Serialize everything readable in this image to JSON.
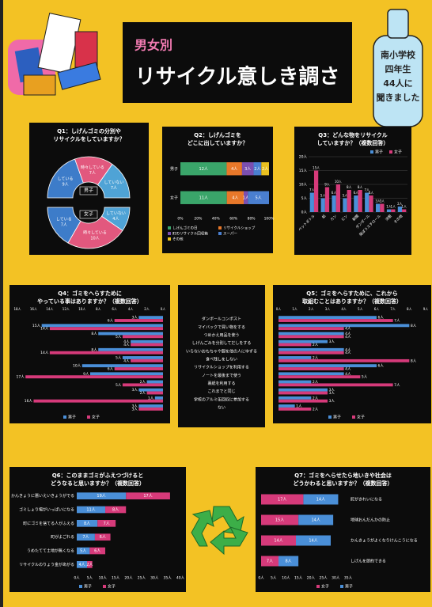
{
  "poster": {
    "title_small": "男女別",
    "title": "リサイクル意しき調さ",
    "note": [
      "南小学校",
      "四年生",
      "44人に",
      "聞きました"
    ]
  },
  "chart_data": [
    {
      "type": "donut",
      "title": [
        "Q1：しげんゴミの分別や",
        "リサイクルをしていますか？"
      ],
      "categories": [
        "している",
        "時々している",
        "していない"
      ],
      "colors": [
        "#3d7cc9",
        "#e2587e",
        "#4fa3d6"
      ],
      "series": [
        {
          "name": "男子",
          "values": [
            9,
            7,
            7
          ],
          "value_labels": [
            "9人",
            "7人",
            "7人"
          ]
        },
        {
          "name": "女子",
          "values": [
            7,
            10,
            4
          ],
          "value_labels": [
            "7人",
            "10人",
            "4人"
          ]
        }
      ]
    },
    {
      "type": "barh_stacked",
      "stacked": "percent",
      "title": [
        "Q2：しげんゴミを",
        "どこに出していますか？"
      ],
      "categories": [
        "男子",
        "女子"
      ],
      "series": [
        {
          "name": "しげんゴミの日",
          "color": "#3aa56a",
          "values": [
            12,
            11
          ],
          "value_labels": [
            "12人",
            "11人"
          ]
        },
        {
          "name": "リサイクルショップ",
          "color": "#e8782a",
          "values": [
            4,
            4
          ],
          "value_labels": [
            "4人",
            "4人"
          ]
        },
        {
          "name": "町のリサイクル回収箱",
          "color": "#7b4fb0",
          "values": [
            3,
            1
          ],
          "value_labels": [
            "3人",
            "1人"
          ]
        },
        {
          "name": "スーパー",
          "color": "#4a7fd0",
          "values": [
            2,
            5
          ],
          "value_labels": [
            "2人",
            "5人"
          ]
        },
        {
          "name": "その他",
          "color": "#e8c020",
          "values": [
            2,
            0
          ],
          "value_labels": [
            "2人",
            null
          ]
        }
      ],
      "xlim": [
        0,
        100
      ],
      "xticks": [
        {
          "value": 0,
          "label": "0%"
        },
        {
          "value": 20,
          "label": "20%"
        },
        {
          "value": 40,
          "label": "40%"
        },
        {
          "value": 60,
          "label": "60%"
        },
        {
          "value": 80,
          "label": "80%"
        },
        {
          "value": 100,
          "label": "100%"
        }
      ]
    },
    {
      "type": "bar_grouped",
      "title": [
        "Q3：どんな物をリサイクル",
        "していますか？（複数回答）"
      ],
      "categories": [
        "ペットボトル",
        "紙",
        "カン",
        "ビン",
        "新聞",
        "ダンボール",
        "発ぽうスチロール",
        "洋服",
        "その他"
      ],
      "series": [
        {
          "name": "男子",
          "color": "#4a8fd8",
          "values": [
            7,
            5,
            6,
            5,
            6,
            7,
            3,
            1,
            2
          ],
          "value_labels": [
            "7人",
            "5人",
            "6人",
            "5人",
            "6人",
            "7人",
            "3人",
            "1人",
            "2人"
          ]
        },
        {
          "name": "女子",
          "color": "#d63a7a",
          "values": [
            15,
            9,
            10,
            8,
            8,
            6,
            3,
            1,
            1
          ],
          "value_labels": [
            "15人",
            "9人",
            "10人",
            "8人",
            "8人",
            "6人",
            "3人",
            "1人",
            "1人"
          ]
        }
      ],
      "ylim": [
        0,
        20
      ],
      "yticks": [
        {
          "value": 0,
          "label": "0人"
        },
        {
          "value": 5,
          "label": "5人"
        },
        {
          "value": 10,
          "label": "10人"
        },
        {
          "value": 15,
          "label": "15人"
        },
        {
          "value": 20,
          "label": "20人"
        }
      ],
      "grid": true
    },
    {
      "type": "barh_grouped",
      "x_reversed": true,
      "title": [
        "Q4：ゴミをへらすために",
        "やっている事はありますか？（複数回答）"
      ],
      "categories": [
        "ダンボールコンポスト",
        "マイバックで買い物をする",
        "つめかえ用品を使う",
        "しげんごみを分別してだしをする",
        "いらないおもちゃや服を他の人にゆずる",
        "食べ残しをしない",
        "リサイクルショップを利用する",
        "ノートを最後まで使う",
        "裏紙を利用する",
        "これまでと同じ",
        "学校のアルミ缶回収に参加する",
        "ない"
      ],
      "series": [
        {
          "name": "男子",
          "color": "#4a8fd8",
          "values": [
            3,
            15,
            8,
            4,
            8,
            5,
            10,
            9,
            2,
            3,
            1,
            3
          ],
          "value_labels": [
            "3人",
            "15人",
            "8人",
            "4人",
            "8人",
            "5人",
            "10人",
            "9人",
            "2人",
            "3人",
            "1人",
            "3人"
          ]
        },
        {
          "name": "女子",
          "color": "#d63a7a",
          "values": [
            6,
            14,
            5,
            4,
            14,
            4,
            6,
            17,
            5,
            2,
            16,
            3
          ],
          "value_labels": [
            "6人",
            "14人",
            "5人",
            "4人",
            "14人",
            "4人",
            "6人",
            "17人",
            "5人",
            "2人",
            "16人",
            "3人"
          ]
        }
      ],
      "xlim": [
        0,
        18
      ],
      "xticks": [
        {
          "value": 0,
          "label": "0人"
        },
        {
          "value": 2,
          "label": "2人"
        },
        {
          "value": 4,
          "label": "4人"
        },
        {
          "value": 6,
          "label": "6人"
        },
        {
          "value": 8,
          "label": "8人"
        },
        {
          "value": 10,
          "label": "10人"
        },
        {
          "value": 12,
          "label": "12人"
        },
        {
          "value": 14,
          "label": "14人"
        },
        {
          "value": 16,
          "label": "16人"
        },
        {
          "value": 18,
          "label": "18人"
        }
      ]
    },
    {
      "type": "barh_grouped",
      "title": [
        "Q5：ゴミをへらすために、これから",
        "取組むことはありますか？（複数回答）"
      ],
      "series": [
        {
          "name": "男子",
          "color": "#4a8fd8",
          "values": [
            6,
            8,
            4,
            3,
            4,
            2,
            6,
            4,
            2,
            3,
            2,
            1
          ],
          "value_labels": [
            "6人",
            "8人",
            "4人",
            "3人",
            "4人",
            "2人",
            "6人",
            "4人",
            "2人",
            "3人",
            "2人",
            "1人"
          ]
        },
        {
          "name": "女子",
          "color": "#d63a7a",
          "values": [
            7,
            4,
            4,
            2,
            4,
            8,
            4,
            5,
            7,
            3,
            3,
            2
          ],
          "value_labels": [
            "7人",
            "4人",
            "4人",
            "2人",
            "4人",
            "8人",
            "4人",
            "5人",
            "7人",
            "3人",
            "3人",
            "2人"
          ]
        }
      ],
      "xlim": [
        0,
        9
      ],
      "xticks": [
        {
          "value": 0,
          "label": "0人"
        },
        {
          "value": 1,
          "label": "1人"
        },
        {
          "value": 2,
          "label": "2人"
        },
        {
          "value": 3,
          "label": "3人"
        },
        {
          "value": 4,
          "label": "4人"
        },
        {
          "value": 5,
          "label": "5人"
        },
        {
          "value": 6,
          "label": "6人"
        },
        {
          "value": 7,
          "label": "7人"
        },
        {
          "value": 8,
          "label": "8人"
        },
        {
          "value": 9,
          "label": "9人"
        }
      ]
    },
    {
      "type": "barh_stacked",
      "title": [
        "Q6：このままゴミがふえつづけると",
        "どうなると思いますか？（複数回答）"
      ],
      "categories": [
        "かんきょうに悪いえいきょうがでる",
        "ゴミしょり場がいっぱいになる",
        "町にゴミを捨てる人がふえる",
        "町がよごれる",
        "うめたてて土地が無くなる",
        "リサイクルのりょう金があがる"
      ],
      "series": [
        {
          "name": "男子",
          "color": "#4a8fd8",
          "values": [
            19,
            11,
            8,
            7,
            5,
            4
          ],
          "value_labels": [
            "19人",
            "11人",
            "8人",
            "7人",
            "5人",
            "4人"
          ]
        },
        {
          "name": "女子",
          "color": "#d63a7a",
          "values": [
            17,
            8,
            7,
            6,
            6,
            2
          ],
          "value_labels": [
            "17人",
            "8人",
            "7人",
            "6人",
            "6人",
            "2人"
          ]
        }
      ],
      "xlim": [
        0,
        40
      ],
      "xticks": [
        {
          "value": 0,
          "label": "0人"
        },
        {
          "value": 5,
          "label": "5人"
        },
        {
          "value": 10,
          "label": "10人"
        },
        {
          "value": 15,
          "label": "15人"
        },
        {
          "value": 20,
          "label": "20人"
        },
        {
          "value": 25,
          "label": "25人"
        },
        {
          "value": 30,
          "label": "30人"
        },
        {
          "value": 35,
          "label": "35人"
        },
        {
          "value": 40,
          "label": "40人"
        }
      ]
    },
    {
      "type": "barh_stacked",
      "title": [
        "Q7：ゴミをへらせたら地いきや社会は",
        "どうかわると思いますか？（複数回答）"
      ],
      "categories": [
        "町がきれいになる",
        "地球おんだんかの防止",
        "かんきょうがよくなりけんこうになる",
        "しげんを節約できる"
      ],
      "series": [
        {
          "name": "女子",
          "color": "#d63a7a",
          "values": [
            17,
            15,
            14,
            7
          ],
          "value_labels": [
            "17人",
            "15人",
            "14人",
            "7人"
          ]
        },
        {
          "name": "男子",
          "color": "#4a8fd8",
          "values": [
            14,
            14,
            14,
            8
          ],
          "value_labels": [
            "14人",
            "14人",
            "14人",
            "8人"
          ]
        }
      ],
      "xlim": [
        0,
        35
      ],
      "xticks": [
        {
          "value": 0,
          "label": "0人"
        },
        {
          "value": 5,
          "label": "5人"
        },
        {
          "value": 10,
          "label": "10人"
        },
        {
          "value": 15,
          "label": "15人"
        },
        {
          "value": 20,
          "label": "20人"
        },
        {
          "value": 25,
          "label": "25人"
        },
        {
          "value": 30,
          "label": "30人"
        },
        {
          "value": 35,
          "label": "35人"
        }
      ]
    }
  ]
}
